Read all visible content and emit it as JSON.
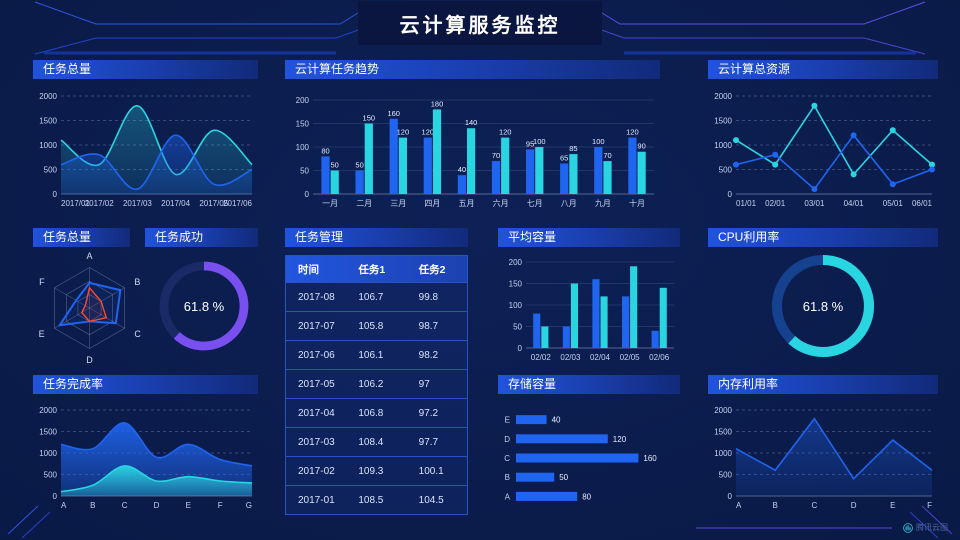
{
  "title": "云计算服务监控",
  "watermark": "腾讯云图",
  "panels": {
    "tasks_total_top": {
      "title": "任务总量"
    },
    "task_trend": {
      "title": "云计算任务趋势"
    },
    "total_resources": {
      "title": "云计算总资源"
    },
    "tasks_total_radar": {
      "title": "任务总量"
    },
    "task_success": {
      "title": "任务成功"
    },
    "task_table": {
      "title": "任务管理"
    },
    "avg_capacity": {
      "title": "平均容量"
    },
    "cpu_usage": {
      "title": "CPU利用率"
    },
    "completion_rate": {
      "title": "任务完成率"
    },
    "storage": {
      "title": "存储容量"
    },
    "memory_usage": {
      "title": "内存利用率"
    }
  },
  "colors": {
    "blue": "#1f65f0",
    "cyan": "#2ad5e2",
    "purple": "#7a4ff0",
    "red": "#ff4930",
    "accent": "#2153dd",
    "grid": "#bed2ff",
    "tick": "#c6d2f0"
  },
  "chart_data": [
    {
      "id": "tasks_total_top",
      "type": "area",
      "title": "任务总量",
      "smooth": true,
      "grid": "dashed",
      "x": [
        "2017/01",
        "2017/02",
        "2017/03",
        "2017/04",
        "2017/05",
        "2017/06"
      ],
      "series": [
        {
          "name": "cyan",
          "values": [
            1100,
            600,
            1800,
            400,
            1300,
            600
          ],
          "fillOpacity": 0.3
        },
        {
          "name": "blue",
          "values": [
            600,
            800,
            100,
            1200,
            200,
            500
          ],
          "fillOpacity": 0.45
        }
      ],
      "ylim": [
        0,
        2000
      ],
      "yticks": [
        0,
        500,
        1000,
        1500,
        2000
      ]
    },
    {
      "id": "task_trend",
      "type": "bar",
      "title": "云计算任务趋势",
      "labels": true,
      "categories": [
        "一月",
        "二月",
        "三月",
        "四月",
        "五月",
        "六月",
        "七月",
        "八月",
        "九月",
        "十月"
      ],
      "series": [
        {
          "name": "blue",
          "values": [
            80,
            50,
            160,
            120,
            40,
            70,
            95,
            65,
            100,
            120
          ]
        },
        {
          "name": "cyan",
          "values": [
            50,
            150,
            120,
            180,
            140,
            120,
            100,
            85,
            70,
            90
          ]
        }
      ],
      "ylim": [
        0,
        200
      ],
      "yticks": [
        0,
        50,
        100,
        150,
        200
      ]
    },
    {
      "id": "total_resources",
      "type": "line",
      "title": "云计算总资源",
      "markers": true,
      "grid": "dashed",
      "x": [
        "01/01",
        "02/01",
        "03/01",
        "04/01",
        "05/01",
        "06/01"
      ],
      "series": [
        {
          "name": "cyan",
          "values": [
            1100,
            600,
            1800,
            400,
            1300,
            600
          ]
        },
        {
          "name": "blue",
          "values": [
            600,
            800,
            100,
            1200,
            200,
            500
          ]
        }
      ],
      "ylim": [
        0,
        2000
      ],
      "yticks": [
        0,
        500,
        1000,
        1500,
        2000
      ]
    },
    {
      "id": "tasks_total_radar",
      "type": "radar",
      "title": "任务总量",
      "axes": [
        "A",
        "B",
        "C",
        "D",
        "E",
        "F"
      ],
      "max": 100,
      "series": [
        {
          "name": "blue",
          "values": [
            62,
            88,
            75,
            33,
            85,
            38
          ]
        },
        {
          "name": "red",
          "values": [
            50,
            33,
            48,
            33,
            22,
            12
          ]
        }
      ]
    },
    {
      "id": "task_success",
      "type": "donut",
      "title": "任务成功",
      "value": 61.8,
      "label": "61.8 %",
      "color": "purple",
      "track": "#1a2a66"
    },
    {
      "id": "task_table",
      "type": "table",
      "title": "任务管理",
      "headers": [
        "时间",
        "任务1",
        "任务2"
      ],
      "rows": [
        [
          "2017-08",
          "106.7",
          "99.8"
        ],
        [
          "2017-07",
          "105.8",
          "98.7"
        ],
        [
          "2017-06",
          "106.1",
          "98.2"
        ],
        [
          "2017-05",
          "106.2",
          "97"
        ],
        [
          "2017-04",
          "106.8",
          "97.2"
        ],
        [
          "2017-03",
          "108.4",
          "97.7"
        ],
        [
          "2017-02",
          "109.3",
          "100.1"
        ],
        [
          "2017-01",
          "108.5",
          "104.5"
        ]
      ]
    },
    {
      "id": "avg_capacity",
      "type": "bar",
      "title": "平均容量",
      "labels": false,
      "categories": [
        "02/02",
        "02/03",
        "02/04",
        "02/05",
        "02/06"
      ],
      "series": [
        {
          "name": "blue",
          "values": [
            80,
            50,
            160,
            120,
            40
          ]
        },
        {
          "name": "cyan",
          "values": [
            50,
            150,
            120,
            190,
            140
          ]
        }
      ],
      "ylim": [
        0,
        200
      ],
      "yticks": [
        0,
        50,
        100,
        150,
        200
      ]
    },
    {
      "id": "cpu_usage",
      "type": "donut",
      "title": "CPU利用率",
      "value": 61.8,
      "label": "61.8 %",
      "color": "cyan",
      "track": "#15418f"
    },
    {
      "id": "completion_rate",
      "type": "area",
      "title": "任务完成率",
      "smooth": true,
      "grid": "dashed",
      "x": [
        "A",
        "B",
        "C",
        "D",
        "E",
        "F",
        "G"
      ],
      "series": [
        {
          "name": "blue",
          "values": [
            1200,
            1100,
            1700,
            900,
            1200,
            850,
            700
          ],
          "fillOpacity": 0.92
        },
        {
          "name": "cyan",
          "values": [
            100,
            250,
            700,
            350,
            450,
            350,
            300
          ],
          "fillOpacity": 0.95
        }
      ],
      "ylim": [
        0,
        2000
      ],
      "yticks": [
        0,
        500,
        1000,
        1500,
        2000
      ]
    },
    {
      "id": "storage",
      "type": "hbar",
      "title": "存储容量",
      "categories": [
        "E",
        "D",
        "C",
        "B",
        "A"
      ],
      "values": [
        40,
        120,
        160,
        50,
        80
      ],
      "xmax": 170
    },
    {
      "id": "memory_usage",
      "type": "line",
      "title": "内存利用率",
      "grid": "dashed",
      "x": [
        "A",
        "B",
        "C",
        "D",
        "E",
        "F"
      ],
      "series": [
        {
          "name": "blue",
          "values": [
            1100,
            600,
            1800,
            400,
            1300,
            600
          ],
          "fill": true,
          "fillOpacity": 0.38
        }
      ],
      "ylim": [
        0,
        2000
      ],
      "yticks": [
        0,
        500,
        1000,
        1500,
        2000
      ]
    }
  ]
}
